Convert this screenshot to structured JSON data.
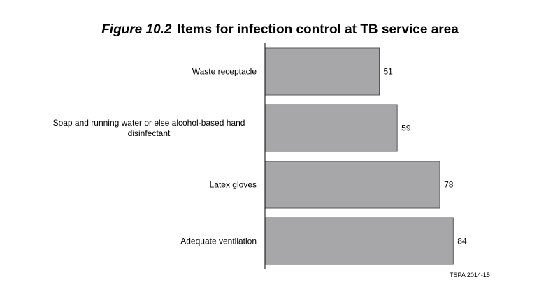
{
  "title": {
    "figure_label": "Figure 10.2",
    "text": "Items for infection control at TB service area"
  },
  "source_note": "TSPA 2014-15",
  "colors": {
    "bar_fill": "#a7a7a9",
    "bar_stroke": "#555555",
    "axis": "#000000"
  },
  "chart_data": {
    "type": "bar",
    "orientation": "horizontal",
    "title": "Items for infection control at TB service area",
    "categories": [
      [
        "Waste receptacle"
      ],
      [
        "Soap and running water or else alcohol-based hand",
        "disinfectant"
      ],
      [
        "Latex gloves"
      ],
      [
        "Adequate ventilation"
      ]
    ],
    "values": [
      51,
      59,
      78,
      84
    ],
    "data_labels": [
      "51",
      "59",
      "78",
      "84"
    ],
    "xlim": [
      0,
      100
    ],
    "grid": false,
    "legend": "none"
  }
}
